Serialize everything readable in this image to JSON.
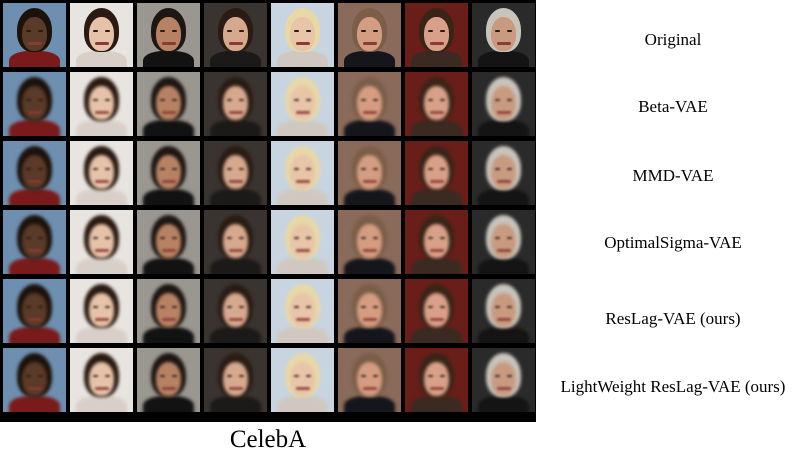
{
  "caption": "CelebA",
  "row_labels": [
    "Original",
    "Beta-VAE",
    "MMD-VAE",
    "OptimalSigma-VAE",
    "ResLag-VAE (ours)",
    "LightWeight ResLag-VAE (ours)"
  ],
  "faces": [
    {
      "bg": "#6f8fb0",
      "skin": "#5a3a28",
      "hair": "#1c120c",
      "cloth": "#7a1a1a"
    },
    {
      "bg": "#e8e4e0",
      "skin": "#e6c2a8",
      "hair": "#2a1a12",
      "cloth": "#d8d0c8"
    },
    {
      "bg": "#9a9690",
      "skin": "#b78264",
      "hair": "#1e1612",
      "cloth": "#121212"
    },
    {
      "bg": "#3a3430",
      "skin": "#d6a88e",
      "hair": "#2a1c14",
      "cloth": "#1c1a18"
    },
    {
      "bg": "#c8d4e0",
      "skin": "#e8c4a8",
      "hair": "#e8d8a8",
      "cloth": "#d0c8c0"
    },
    {
      "bg": "#8a6a5a",
      "skin": "#d49c80",
      "hair": "#7a5e48",
      "cloth": "#15161c"
    },
    {
      "bg": "#6a1e1a",
      "skin": "#d8a088",
      "hair": "#3a2418",
      "cloth": "#3a2a22"
    },
    {
      "bg": "#2a2a2a",
      "skin": "#c89a80",
      "hair": "#c8c4bc",
      "cloth": "#141414"
    }
  ]
}
